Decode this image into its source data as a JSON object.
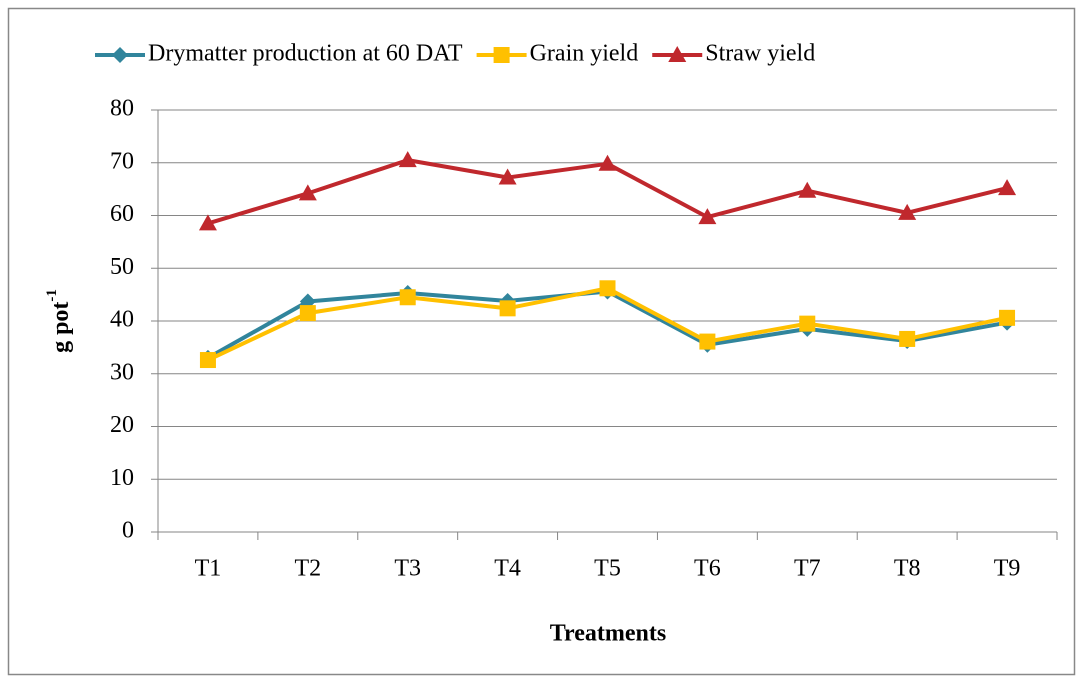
{
  "chart_data": {
    "type": "line",
    "xlabel": "Treatments",
    "ylabel": {
      "text": "g  pot",
      "superscript": "-1"
    },
    "categories": [
      "T1",
      "T2",
      "T3",
      "T4",
      "T5",
      "T6",
      "T7",
      "T8",
      "T9"
    ],
    "series": [
      {
        "name": "Drymatter production at 60 DAT",
        "color": "#31859c",
        "marker": "diamond",
        "values": [
          33.0,
          43.7,
          45.3,
          43.8,
          45.6,
          35.5,
          38.5,
          36.2,
          39.7
        ]
      },
      {
        "name": "Grain yield",
        "color": "#ffc000",
        "marker": "square",
        "values": [
          32.6,
          41.5,
          44.5,
          42.4,
          46.2,
          36.1,
          39.5,
          36.6,
          40.6
        ]
      },
      {
        "name": "Straw yield",
        "color": "#c0282d",
        "marker": "triangle",
        "values": [
          58.5,
          64.2,
          70.5,
          67.2,
          69.8,
          59.7,
          64.7,
          60.5,
          65.2
        ]
      }
    ],
    "ylim": [
      0,
      80
    ],
    "yticks": [
      0,
      10,
      20,
      30,
      40,
      50,
      60,
      70,
      80
    ],
    "grid": true,
    "legend": "top"
  }
}
